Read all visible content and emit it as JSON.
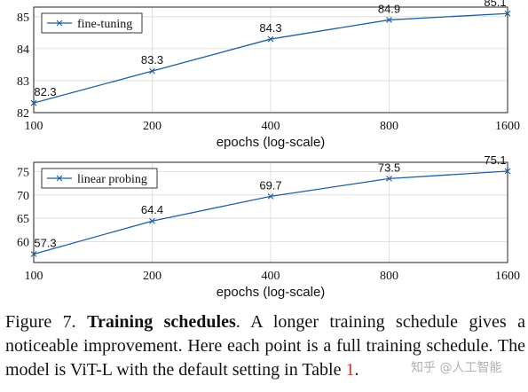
{
  "chart_data": [
    {
      "type": "line",
      "xlabel": "epochs (log-scale)",
      "x_scale": "log",
      "categories": [
        "100",
        "200",
        "400",
        "800",
        "1600"
      ],
      "x": [
        100,
        200,
        400,
        800,
        1600
      ],
      "ylim": [
        82,
        85.3
      ],
      "yticks": [
        82,
        83,
        84,
        85
      ],
      "grid": true,
      "legend_position": "top-left",
      "series": [
        {
          "name": "fine-tuning",
          "values": [
            82.3,
            83.3,
            84.3,
            84.9,
            85.1
          ],
          "labels": [
            "82.3",
            "83.3",
            "84.3",
            "84.9",
            "85.1"
          ]
        }
      ],
      "color": "#1f5fa0"
    },
    {
      "type": "line",
      "xlabel": "epochs (log-scale)",
      "x_scale": "log",
      "categories": [
        "100",
        "200",
        "400",
        "800",
        "1600"
      ],
      "x": [
        100,
        200,
        400,
        800,
        1600
      ],
      "ylim": [
        55.5,
        77
      ],
      "yticks": [
        60,
        65,
        70,
        75
      ],
      "grid": true,
      "legend_position": "top-left",
      "series": [
        {
          "name": "linear probing",
          "values": [
            57.3,
            64.4,
            69.7,
            73.5,
            75.1
          ],
          "labels": [
            "57.3",
            "64.4",
            "69.7",
            "73.5",
            "75.1"
          ]
        }
      ],
      "color": "#1f5fa0"
    }
  ],
  "caption": {
    "prefix": "Figure 7. ",
    "bold": "Training schedules",
    "body": ". A longer training schedule gives a noticeable improvement. Here each point is a full training schedule. The model is ViT-L with the default setting in Table ",
    "ref": "1",
    "end": "."
  },
  "watermark": "知乎 @人工智能"
}
